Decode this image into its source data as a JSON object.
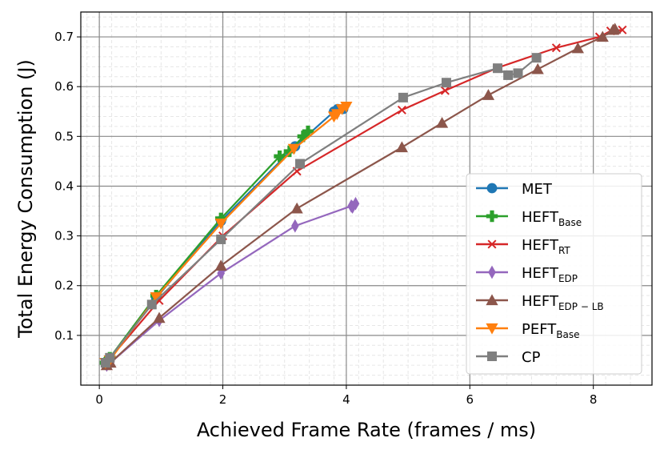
{
  "chart_data": {
    "type": "line",
    "xlabel": "Achieved Frame Rate (frames / ms)",
    "ylabel": "Total Energy Consumption (J)",
    "xlim": [
      -0.3,
      8.95
    ],
    "ylim": [
      0.0,
      0.75
    ],
    "xticks": [
      0,
      2,
      4,
      6,
      8
    ],
    "yticks": [
      0.1,
      0.2,
      0.3,
      0.4,
      0.5,
      0.6,
      0.7
    ],
    "grid": "major and minor",
    "legend_position": "lower-right",
    "series": [
      {
        "name": "MET",
        "sub": "",
        "color": "#1f77b4",
        "marker": "circle",
        "points": [
          [
            0.1,
            0.045
          ],
          [
            0.17,
            0.055
          ],
          [
            0.92,
            0.175
          ],
          [
            1.97,
            0.33
          ],
          [
            3.17,
            0.48
          ],
          [
            3.8,
            0.55
          ],
          [
            3.86,
            0.555
          ],
          [
            3.95,
            0.555
          ]
        ]
      },
      {
        "name": "HEFT",
        "sub": "Base",
        "color": "#2ca02c",
        "marker": "plus",
        "points": [
          [
            0.1,
            0.045
          ],
          [
            0.17,
            0.055
          ],
          [
            0.92,
            0.18
          ],
          [
            1.97,
            0.335
          ],
          [
            2.92,
            0.46
          ],
          [
            3.08,
            0.47
          ],
          [
            3.3,
            0.5
          ],
          [
            3.38,
            0.51
          ]
        ]
      },
      {
        "name": "HEFT",
        "sub": "RT",
        "color": "#d62728",
        "marker": "x",
        "points": [
          [
            0.1,
            0.045
          ],
          [
            0.18,
            0.055
          ],
          [
            0.97,
            0.17
          ],
          [
            2.0,
            0.3
          ],
          [
            3.2,
            0.43
          ],
          [
            4.9,
            0.553
          ],
          [
            5.6,
            0.592
          ],
          [
            6.45,
            0.638
          ],
          [
            7.4,
            0.678
          ],
          [
            8.1,
            0.7
          ],
          [
            8.28,
            0.712
          ],
          [
            8.47,
            0.714
          ]
        ]
      },
      {
        "name": "HEFT",
        "sub": "EDP",
        "color": "#9467bd",
        "marker": "diamond",
        "points": [
          [
            0.12,
            0.04
          ],
          [
            0.18,
            0.045
          ],
          [
            0.97,
            0.13
          ],
          [
            1.97,
            0.225
          ],
          [
            3.17,
            0.32
          ],
          [
            4.08,
            0.36
          ],
          [
            4.1,
            0.358
          ],
          [
            4.15,
            0.365
          ]
        ]
      },
      {
        "name": "HEFT",
        "sub": "EDP − LB",
        "color": "#8c564b",
        "marker": "triangle-up",
        "points": [
          [
            0.12,
            0.04
          ],
          [
            0.18,
            0.045
          ],
          [
            0.97,
            0.135
          ],
          [
            1.97,
            0.24
          ],
          [
            3.2,
            0.355
          ],
          [
            4.9,
            0.478
          ],
          [
            5.55,
            0.527
          ],
          [
            6.3,
            0.583
          ],
          [
            7.1,
            0.635
          ],
          [
            7.75,
            0.677
          ],
          [
            8.15,
            0.7
          ],
          [
            8.32,
            0.714
          ],
          [
            8.35,
            0.716
          ]
        ]
      },
      {
        "name": "PEFT",
        "sub": "Base",
        "color": "#ff7f0e",
        "marker": "triangle-down",
        "points": [
          [
            0.1,
            0.045
          ],
          [
            0.17,
            0.05
          ],
          [
            0.92,
            0.177
          ],
          [
            1.97,
            0.325
          ],
          [
            3.15,
            0.475
          ],
          [
            3.8,
            0.54
          ],
          [
            3.85,
            0.545
          ],
          [
            3.93,
            0.555
          ],
          [
            4.0,
            0.56
          ]
        ]
      },
      {
        "name": "CP",
        "sub": "",
        "color": "#7f7f7f",
        "marker": "square",
        "points": [
          [
            0.1,
            0.045
          ],
          [
            0.17,
            0.055
          ],
          [
            0.85,
            0.162
          ],
          [
            1.97,
            0.293
          ],
          [
            3.25,
            0.445
          ],
          [
            4.92,
            0.578
          ],
          [
            5.62,
            0.608
          ],
          [
            6.45,
            0.637
          ],
          [
            6.62,
            0.623
          ],
          [
            6.78,
            0.627
          ],
          [
            7.08,
            0.658
          ]
        ]
      }
    ]
  }
}
